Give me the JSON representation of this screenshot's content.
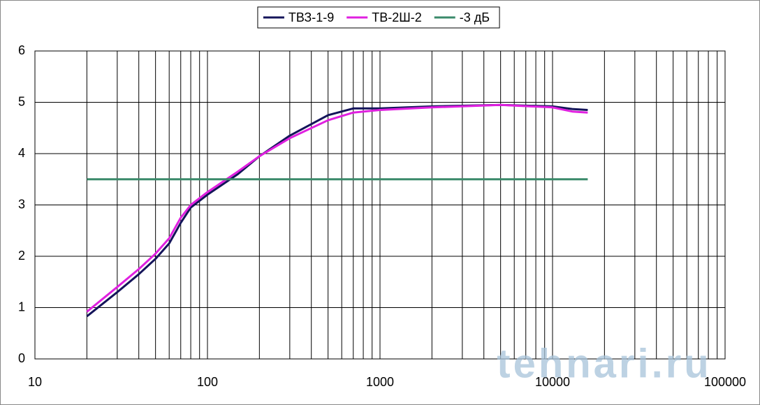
{
  "chart_data": {
    "type": "line",
    "x": [
      20,
      30,
      40,
      50,
      60,
      70,
      80,
      100,
      150,
      200,
      300,
      500,
      700,
      1000,
      2000,
      5000,
      10000,
      13000,
      16000
    ],
    "series": [
      {
        "name": "ТВЗ-1-9",
        "color": "#14145a",
        "values": [
          0.83,
          1.3,
          1.65,
          1.95,
          2.25,
          2.65,
          2.95,
          3.2,
          3.6,
          3.95,
          4.35,
          4.75,
          4.88,
          4.88,
          4.92,
          4.95,
          4.92,
          4.87,
          4.85
        ]
      },
      {
        "name": "ТВ-2Ш-2",
        "color": "#e020e0",
        "values": [
          0.92,
          1.4,
          1.75,
          2.05,
          2.35,
          2.75,
          3.0,
          3.25,
          3.65,
          3.95,
          4.3,
          4.65,
          4.8,
          4.85,
          4.9,
          4.95,
          4.9,
          4.82,
          4.8
        ]
      },
      {
        "name": "-3 дБ",
        "color": "#3a8a6a",
        "values": [
          3.5,
          3.5,
          3.5,
          3.5,
          3.5,
          3.5,
          3.5,
          3.5,
          3.5,
          3.5,
          3.5,
          3.5,
          3.5,
          3.5,
          3.5,
          3.5,
          3.5,
          3.5,
          3.5
        ]
      }
    ],
    "xlim": [
      10,
      100000
    ],
    "xticks": [
      10,
      100,
      1000,
      10000,
      100000
    ],
    "xscale": "log",
    "ylim": [
      0,
      6
    ],
    "yticks": [
      0,
      1,
      2,
      3,
      4,
      5,
      6
    ],
    "grid": true,
    "minor_grid": true,
    "legend": "top"
  },
  "watermark": "tehnari.ru"
}
